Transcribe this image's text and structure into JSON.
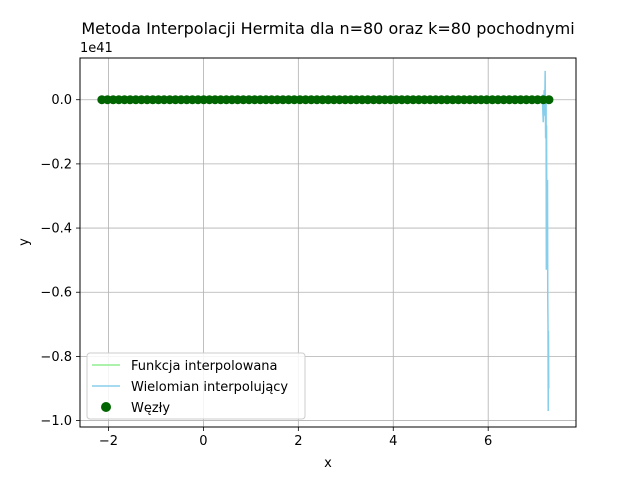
{
  "chart_data": {
    "type": "line",
    "title": "Metoda Interpolacji Hermita dla n=80 oraz k=80 pochodnymi",
    "xlabel": "x",
    "ylabel": "y",
    "y_offset_label": "1e41",
    "xlim": [
      -2.6,
      7.85
    ],
    "ylim": [
      -1.02,
      0.13
    ],
    "grid": true,
    "legend_position": "lower-left",
    "x_ticks": [
      -2,
      0,
      2,
      4,
      6
    ],
    "x_tick_labels": [
      "−2",
      "0",
      "2",
      "4",
      "6"
    ],
    "y_ticks": [
      -1.0,
      -0.8,
      -0.6,
      -0.4,
      -0.2,
      0.0
    ],
    "y_tick_labels": [
      "−1.0",
      "−0.8",
      "−0.6",
      "−0.4",
      "−0.2",
      "0.0"
    ],
    "series": [
      {
        "name": "Funkcja interpolowana",
        "color": "#90ee90",
        "kind": "line",
        "x": [
          -2.14,
          7.28
        ],
        "y": [
          0.0,
          0.0
        ]
      },
      {
        "name": "Wielomian interpolujący",
        "color": "#87ceeb",
        "kind": "line",
        "x": [
          -2.14,
          7.0,
          7.1,
          7.14,
          7.16,
          7.18,
          7.19,
          7.2,
          7.21,
          7.22,
          7.225,
          7.23,
          7.235,
          7.24,
          7.245,
          7.25,
          7.255,
          7.26,
          7.265,
          7.27,
          7.275,
          7.28
        ],
        "y": [
          0.0,
          0.0,
          0.0,
          0.01,
          -0.07,
          0.03,
          -0.05,
          0.09,
          -0.12,
          0.0,
          -0.53,
          -0.08,
          -0.45,
          -0.26,
          -0.4,
          -0.25,
          -0.62,
          -0.7,
          -0.97,
          -0.72,
          -0.9,
          -0.9
        ]
      },
      {
        "name": "Węzły",
        "color": "#006400",
        "kind": "scatter",
        "x_start": -2.14,
        "x_end": 7.28,
        "count": 80,
        "y": 0.0
      }
    ]
  }
}
